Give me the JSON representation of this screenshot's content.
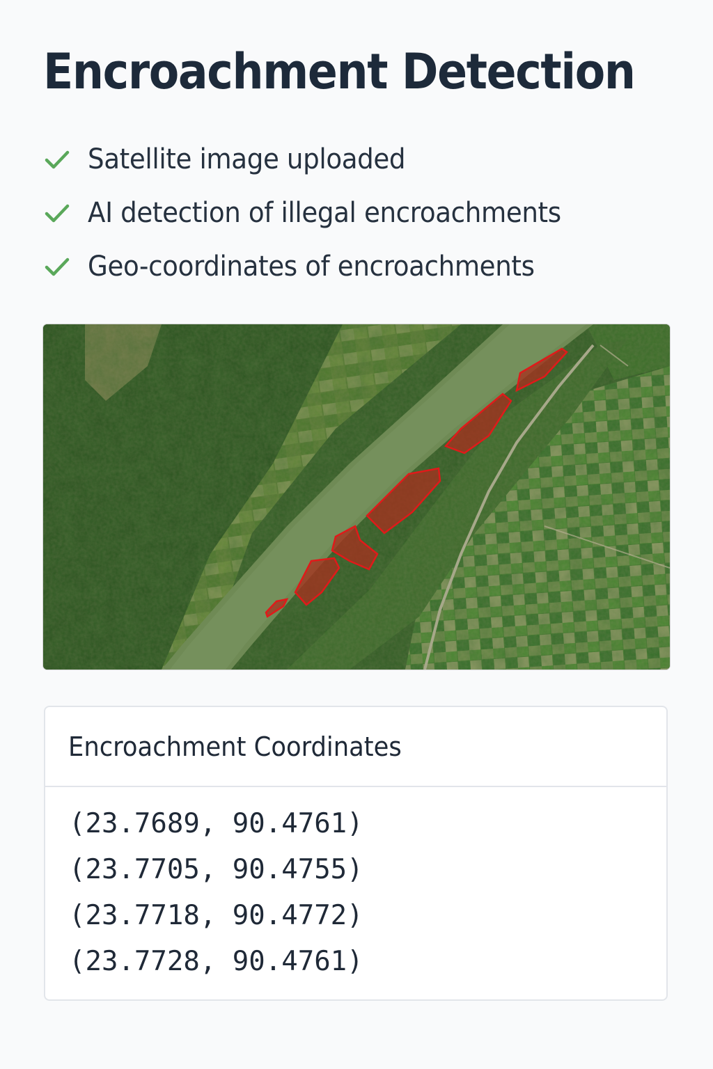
{
  "page": {
    "title": "Encroachment Detection"
  },
  "checklist": [
    {
      "label": "Satellite image uploaded",
      "icon": "check-icon"
    },
    {
      "label": "AI detection of illegal encroachments",
      "icon": "check-icon"
    },
    {
      "label": "Geo-coordinates of encroachments",
      "icon": "check-icon"
    }
  ],
  "map": {
    "image": "satellite-river-image",
    "detected_region_count": 7,
    "highlight_color": "#e01a1a"
  },
  "coordinates_panel": {
    "title": "Encroachment Coordinates",
    "items": [
      "(23.7689, 90.4761)",
      "(23.7705, 90.4755)",
      "(23.7718, 90.4772)",
      "(23.7728, 90.4761)"
    ]
  },
  "colors": {
    "check": "#5aa85a",
    "title": "#1d2a3a",
    "river": "#6f8a55"
  }
}
